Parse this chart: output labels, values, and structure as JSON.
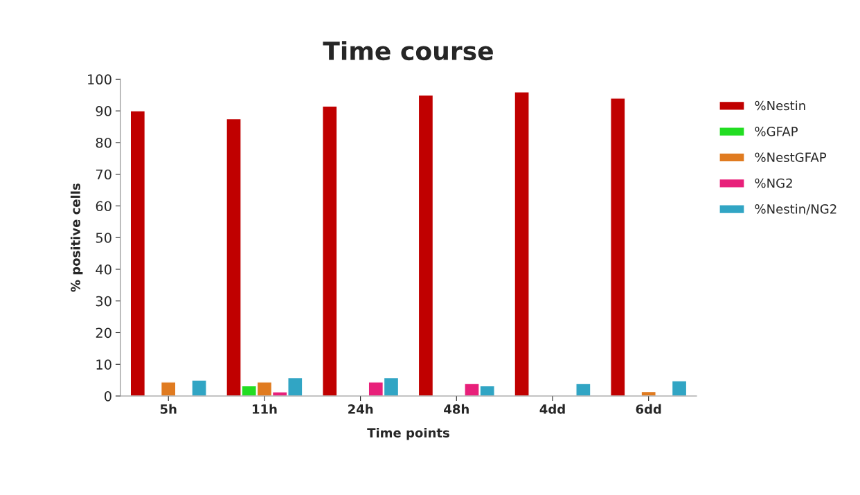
{
  "chart_data": {
    "type": "bar",
    "title": "Time course",
    "xlabel": "Time points",
    "ylabel": "% positive cells",
    "categories": [
      "5h",
      "11h",
      "24h",
      "48h",
      "4dd",
      "6dd"
    ],
    "series": [
      {
        "name": "%Nestin",
        "color": "#c00000",
        "values": [
          90,
          87.5,
          91.5,
          95,
          96,
          94
        ]
      },
      {
        "name": "%GFAP",
        "color": "#22dd22",
        "values": [
          null,
          3.2,
          null,
          null,
          null,
          null
        ]
      },
      {
        "name": "%NestGFAP",
        "color": "#e07b20",
        "values": [
          4.4,
          4.4,
          null,
          null,
          null,
          1.4
        ]
      },
      {
        "name": "%NG2",
        "color": "#e8207a",
        "values": [
          null,
          1.3,
          4.4,
          3.9,
          null,
          null
        ]
      },
      {
        "name": "%Nestin/NG2",
        "color": "#31a5c4",
        "values": [
          5,
          5.8,
          5.8,
          3.2,
          3.9,
          4.8
        ]
      }
    ],
    "ylim": [
      0,
      100
    ],
    "yticks": [
      0,
      10,
      20,
      30,
      40,
      50,
      60,
      70,
      80,
      90,
      100
    ],
    "grid": false,
    "legend": "right"
  }
}
